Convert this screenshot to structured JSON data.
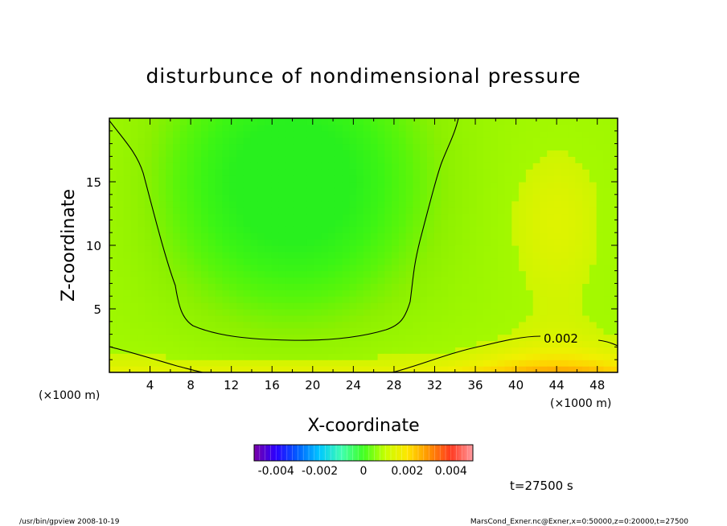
{
  "chart_data": {
    "type": "heatmap",
    "title": "disturbunce of nondimensional pressure",
    "xlabel": "X-coordinate",
    "ylabel": "Z-coordinate",
    "x_units": "(×1000 m)",
    "y_units": "(×1000 m)",
    "xlim": [
      0,
      50
    ],
    "ylim": [
      0,
      20
    ],
    "x_ticks": [
      4,
      8,
      12,
      16,
      20,
      24,
      28,
      32,
      36,
      40,
      44,
      48
    ],
    "y_ticks": [
      5,
      10,
      15
    ],
    "contour_labels": [
      "0.002"
    ],
    "colorbar": {
      "ticks": [
        "-0.004",
        "-0.002",
        "0",
        "0.002",
        "0.004"
      ],
      "range": [
        -0.005,
        0.005
      ]
    },
    "time_label": "t=27500 s",
    "footer_left": "/usr/bin/gpview   2008-10-19",
    "footer_right": "MarsCond_Exner.nc@Exner,x=0:50000,z=0:20000,t=27500"
  }
}
